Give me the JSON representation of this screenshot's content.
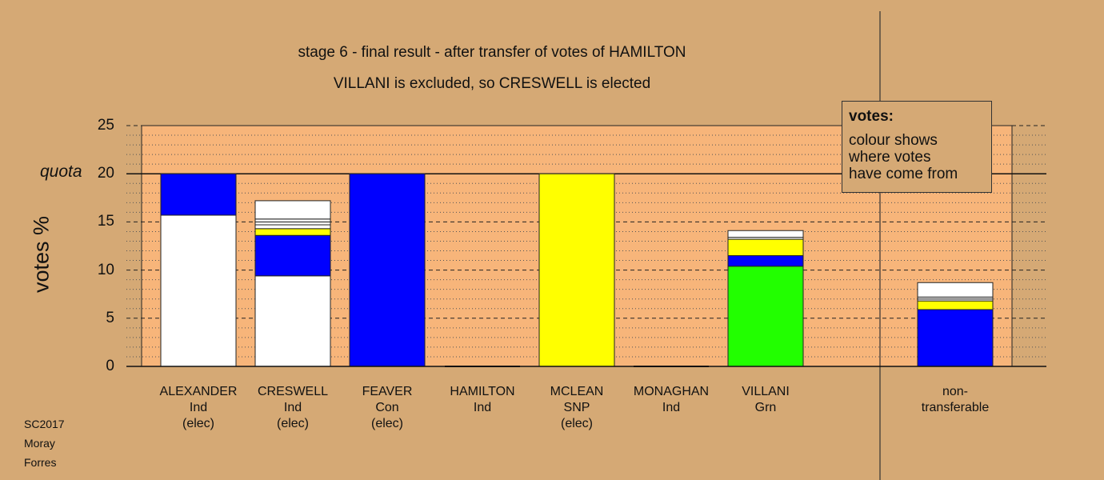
{
  "titles": {
    "line1": "stage 6 - final result - after transfer of votes of HAMILTON",
    "line2": "VILLANI is excluded, so CRESWELL is elected"
  },
  "axis": {
    "ylabel": "votes %",
    "quota_label": "quota",
    "yticks": [
      "0",
      "5",
      "10",
      "15",
      "20",
      "25"
    ]
  },
  "legend": {
    "title": "votes:",
    "lines": [
      "colour shows",
      "where votes",
      "have come from"
    ]
  },
  "footer": [
    "SC2017",
    "Moray",
    "Forres"
  ],
  "candidates": [
    {
      "name": "ALEXANDER",
      "party": "Ind",
      "status": "(elec)"
    },
    {
      "name": "CRESWELL",
      "party": "Ind",
      "status": "(elec)"
    },
    {
      "name": "FEAVER",
      "party": "Con",
      "status": "(elec)"
    },
    {
      "name": "HAMILTON",
      "party": "Ind",
      "status": ""
    },
    {
      "name": "MCLEAN",
      "party": "SNP",
      "status": "(elec)"
    },
    {
      "name": "MONAGHAN",
      "party": "Ind",
      "status": ""
    },
    {
      "name": "VILLANI",
      "party": "Grn",
      "status": ""
    },
    {
      "name": "non-",
      "party": "transferable",
      "status": ""
    }
  ],
  "colors": {
    "background": "#d5a975",
    "plot": "#f7b57a",
    "ind": "#ffffff",
    "con": "#0000ff",
    "snp": "#ffff00",
    "grn": "#22ff00"
  },
  "chart_data": {
    "type": "bar",
    "stacked": true,
    "ylim": [
      0,
      25
    ],
    "quota": 20,
    "categories": [
      "ALEXANDER",
      "CRESWELL",
      "FEAVER",
      "HAMILTON",
      "MCLEAN",
      "MONAGHAN",
      "VILLANI",
      "non-transferable"
    ],
    "stacks": [
      [
        {
          "color": "#ffffff",
          "value": 15.7
        },
        {
          "color": "#0000ff",
          "value": 4.3
        }
      ],
      [
        {
          "color": "#ffffff",
          "value": 9.4
        },
        {
          "color": "#0000ff",
          "value": 4.2
        },
        {
          "color": "#ffff00",
          "value": 0.7
        },
        {
          "color": "#ffffff",
          "value": 0.4
        },
        {
          "color": "#ffffff",
          "value": 0.3
        },
        {
          "color": "#ffffff",
          "value": 0.3
        },
        {
          "color": "#ffffff",
          "value": 1.9
        }
      ],
      [
        {
          "color": "#0000ff",
          "value": 20.0
        }
      ],
      [],
      [
        {
          "color": "#ffff00",
          "value": 20.0
        }
      ],
      [],
      [
        {
          "color": "#22ff00",
          "value": 10.4
        },
        {
          "color": "#0000ff",
          "value": 1.1
        },
        {
          "color": "#ffff00",
          "value": 1.7
        },
        {
          "color": "#ffffff",
          "value": 0.2
        },
        {
          "color": "#ffffff",
          "value": 0.7
        }
      ],
      [
        {
          "color": "#0000ff",
          "value": 5.9
        },
        {
          "color": "#ffff00",
          "value": 0.9
        },
        {
          "color": "#ffffff",
          "value": 0.2
        },
        {
          "color": "#ffffff",
          "value": 0.2
        },
        {
          "color": "#ffffff",
          "value": 1.5
        }
      ]
    ]
  }
}
